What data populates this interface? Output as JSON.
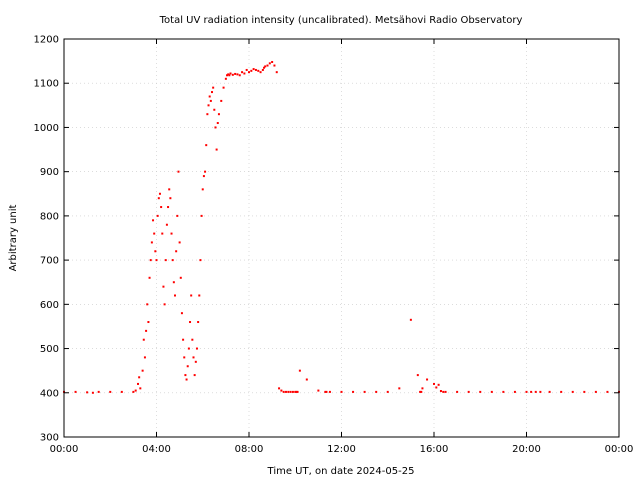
{
  "chart_data": {
    "type": "scatter",
    "title": "Total UV radiation intensity (uncalibrated). Metsähovi Radio Observatory",
    "xlabel": "Time UT, on date 2024-05-25",
    "ylabel": "Arbitrary unit",
    "xlim": [
      0,
      24
    ],
    "ylim": [
      300,
      1200
    ],
    "x_ticks": [
      0,
      4,
      8,
      12,
      16,
      20,
      24
    ],
    "x_tick_labels": [
      "00:00",
      "04:00",
      "08:00",
      "12:00",
      "16:00",
      "20:00",
      "00:00"
    ],
    "y_ticks": [
      300,
      400,
      500,
      600,
      700,
      800,
      900,
      1000,
      1100,
      1200
    ],
    "y_tick_labels": [
      "300",
      "400",
      "500",
      "600",
      "700",
      "800",
      "900",
      "1000",
      "1100",
      "1200"
    ],
    "grid": true,
    "marker_color": "#ff0000",
    "series": [
      {
        "x": [
          0.0,
          0.5,
          1.0,
          1.25,
          1.5,
          2.0,
          2.5,
          3.0,
          3.1,
          3.2,
          3.25,
          3.3,
          3.4,
          3.45,
          3.5,
          3.55,
          3.6,
          3.65,
          3.7,
          3.75,
          3.8,
          3.85,
          3.9,
          3.95,
          4.0,
          4.05,
          4.1,
          4.15,
          4.2,
          4.25,
          4.3,
          4.35,
          4.4,
          4.45,
          4.5,
          4.55,
          4.6,
          4.65,
          4.7,
          4.75,
          4.8,
          4.85,
          4.9,
          4.95,
          5.0,
          5.05,
          5.1,
          5.15,
          5.2,
          5.25,
          5.3,
          5.35,
          5.4,
          5.45,
          5.5,
          5.55,
          5.6,
          5.65,
          5.7,
          5.75,
          5.8,
          5.85,
          5.9,
          5.95,
          6.0,
          6.05,
          6.1,
          6.15,
          6.2,
          6.25,
          6.3,
          6.35,
          6.4,
          6.45,
          6.5,
          6.55,
          6.6,
          6.65,
          6.7,
          6.8,
          6.9,
          7.0,
          7.05,
          7.1,
          7.15,
          7.2,
          7.3,
          7.4,
          7.5,
          7.6,
          7.7,
          7.8,
          7.9,
          8.0,
          8.1,
          8.2,
          8.3,
          8.4,
          8.5,
          8.6,
          8.65,
          8.7,
          8.8,
          8.9,
          9.0,
          9.1,
          9.2,
          9.3,
          9.4,
          9.5,
          9.6,
          9.7,
          9.8,
          9.9,
          10.0,
          10.05,
          10.1,
          10.2,
          10.5,
          11.0,
          11.3,
          11.35,
          11.5,
          12.0,
          12.5,
          13.0,
          13.5,
          14.0,
          14.5,
          15.0,
          15.3,
          15.4,
          15.45,
          15.5,
          15.7,
          16.0,
          16.1,
          16.2,
          16.3,
          16.4,
          16.5,
          17.0,
          17.5,
          18.0,
          18.5,
          19.0,
          19.5,
          20.0,
          20.2,
          20.4,
          20.6,
          21.0,
          21.5,
          22.0,
          22.5,
          23.0,
          23.5,
          24.0
        ],
        "y": [
          402,
          402,
          401,
          400,
          402,
          402,
          402,
          402,
          405,
          420,
          435,
          410,
          450,
          520,
          480,
          540,
          600,
          560,
          660,
          700,
          740,
          790,
          760,
          720,
          700,
          800,
          840,
          850,
          820,
          760,
          640,
          600,
          700,
          780,
          820,
          860,
          840,
          760,
          700,
          650,
          620,
          720,
          800,
          900,
          740,
          660,
          580,
          520,
          480,
          440,
          430,
          460,
          500,
          560,
          620,
          520,
          480,
          440,
          470,
          500,
          560,
          620,
          700,
          800,
          860,
          890,
          900,
          960,
          1030,
          1050,
          1070,
          1060,
          1080,
          1090,
          1040,
          1000,
          950,
          1010,
          1030,
          1060,
          1090,
          1110,
          1118,
          1120,
          1118,
          1122,
          1119,
          1121,
          1120,
          1118,
          1125,
          1122,
          1130,
          1125,
          1128,
          1132,
          1130,
          1128,
          1125,
          1130,
          1135,
          1138,
          1140,
          1145,
          1148,
          1140,
          1125,
          410,
          405,
          402,
          402,
          402,
          402,
          402,
          402,
          402,
          402,
          450,
          430,
          405,
          402,
          402,
          402,
          402,
          402,
          402,
          402,
          402,
          410,
          565,
          440,
          402,
          402,
          410,
          430,
          420,
          412,
          418,
          404,
          402,
          402,
          402,
          402,
          402,
          402,
          402,
          402,
          402,
          402,
          402,
          402,
          402,
          402,
          402,
          402,
          402,
          402,
          402
        ]
      }
    ]
  }
}
